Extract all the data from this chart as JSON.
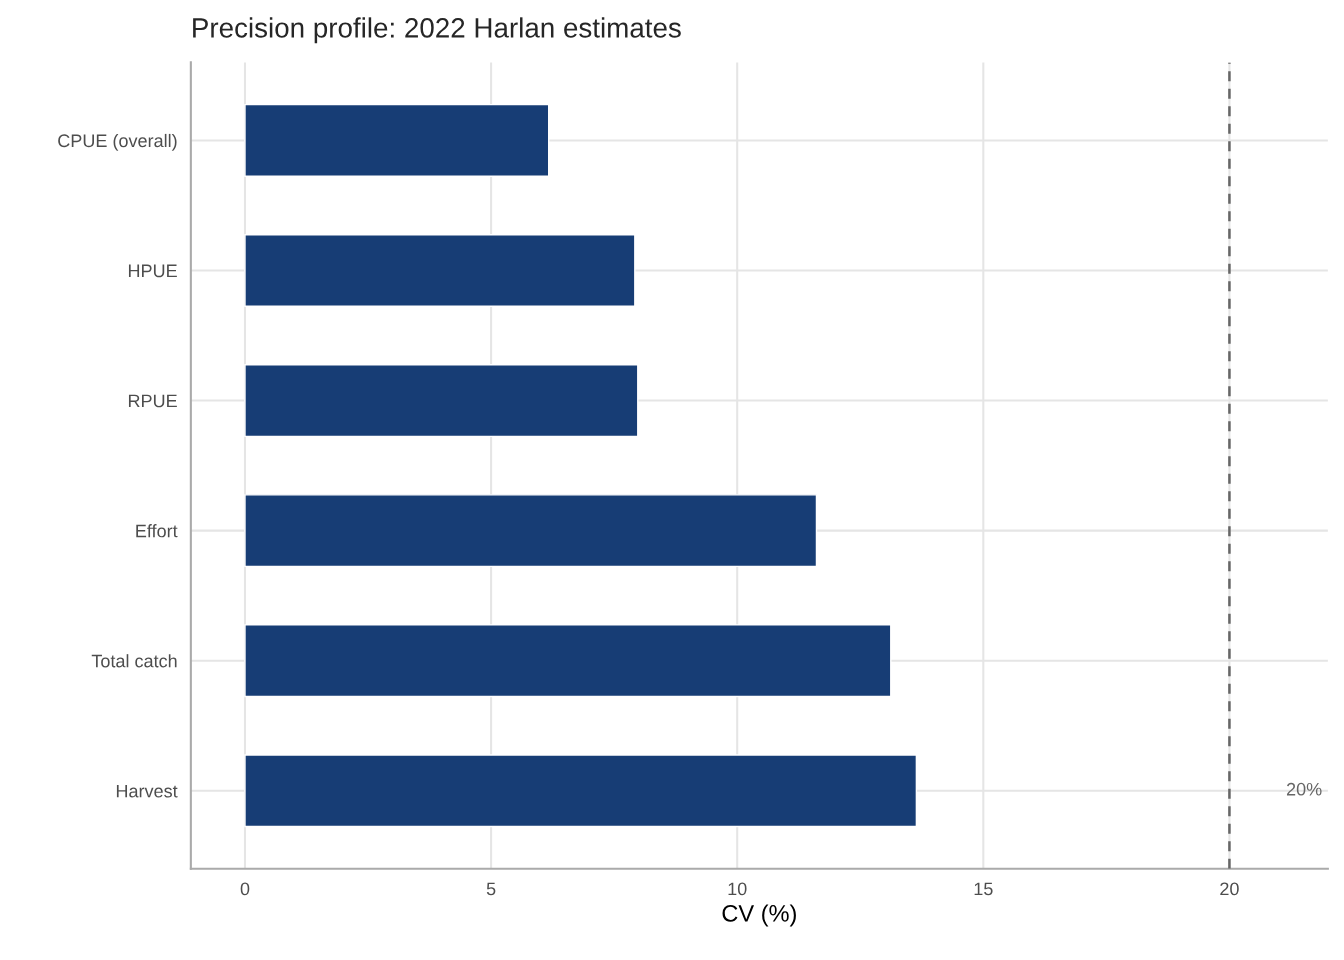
{
  "chart_data": {
    "type": "bar",
    "orientation": "horizontal",
    "title": "Precision profile: 2022 Harlan estimates",
    "xlabel": "CV (%)",
    "categories": [
      "CPUE (overall)",
      "HPUE",
      "RPUE",
      "Effort",
      "Total catch",
      "Harvest"
    ],
    "values": [
      6.17,
      7.92,
      7.98,
      11.61,
      13.12,
      13.64
    ],
    "color": "#173d75",
    "xlim": [
      -1.1,
      22.0
    ],
    "xticks": [
      0,
      5,
      10,
      15,
      20
    ],
    "grid": true,
    "ref_lines": [
      {
        "axis": "x",
        "value": 20,
        "label": "20%",
        "color": "#666666",
        "line_style": "dashed"
      }
    ]
  }
}
